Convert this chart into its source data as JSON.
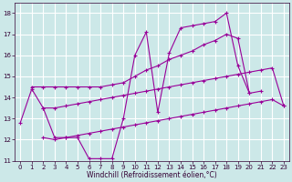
{
  "xlabel": "Windchill (Refroidissement éolien,°C)",
  "xlim": [
    -0.5,
    23.5
  ],
  "ylim": [
    11,
    18.5
  ],
  "yticks": [
    11,
    12,
    13,
    14,
    15,
    16,
    17,
    18
  ],
  "xticks": [
    0,
    1,
    2,
    3,
    4,
    5,
    6,
    7,
    8,
    9,
    10,
    11,
    12,
    13,
    14,
    15,
    16,
    17,
    18,
    19,
    20,
    21,
    22,
    23
  ],
  "background_color": "#cce8e8",
  "grid_color": "#ffffff",
  "line_color": "#990099",
  "line1": {
    "x": [
      0,
      1,
      2,
      3,
      4,
      5,
      6,
      7,
      8,
      9,
      10,
      11,
      12,
      13,
      14,
      15,
      16,
      17,
      18,
      19,
      20,
      21
    ],
    "y": [
      12.8,
      14.4,
      13.5,
      12.1,
      12.1,
      12.1,
      11.1,
      11.1,
      11.1,
      13.0,
      16.0,
      17.1,
      13.3,
      16.1,
      17.3,
      17.4,
      17.5,
      17.6,
      18.0,
      15.5,
      14.2,
      14.3
    ]
  },
  "line2": {
    "x": [
      1,
      2,
      3,
      4,
      5,
      6,
      7,
      8,
      9,
      10,
      11,
      12,
      13,
      14,
      15,
      16,
      17,
      18,
      19,
      20
    ],
    "y": [
      14.5,
      14.5,
      14.5,
      14.5,
      14.5,
      14.5,
      14.5,
      14.6,
      14.7,
      15.0,
      15.3,
      15.5,
      15.8,
      16.0,
      16.2,
      16.5,
      16.7,
      17.0,
      16.8,
      14.2
    ]
  },
  "line3": {
    "x": [
      2,
      3,
      4,
      5,
      6,
      7,
      8,
      9,
      10,
      11,
      12,
      13,
      14,
      15,
      16,
      17,
      18,
      19,
      20,
      21,
      22,
      23
    ],
    "y": [
      13.5,
      13.5,
      13.6,
      13.7,
      13.8,
      13.9,
      14.0,
      14.1,
      14.2,
      14.3,
      14.4,
      14.5,
      14.6,
      14.7,
      14.8,
      14.9,
      15.0,
      15.1,
      15.2,
      15.3,
      15.4,
      13.6
    ]
  },
  "line4": {
    "x": [
      2,
      3,
      4,
      5,
      6,
      7,
      8,
      9,
      10,
      11,
      12,
      13,
      14,
      15,
      16,
      17,
      18,
      19,
      20,
      21,
      22,
      23
    ],
    "y": [
      12.1,
      12.0,
      12.1,
      12.2,
      12.3,
      12.4,
      12.5,
      12.6,
      12.7,
      12.8,
      12.9,
      13.0,
      13.1,
      13.2,
      13.3,
      13.4,
      13.5,
      13.6,
      13.7,
      13.8,
      13.9,
      13.6
    ]
  },
  "tick_fontsize": 5,
  "xlabel_fontsize": 5.5
}
